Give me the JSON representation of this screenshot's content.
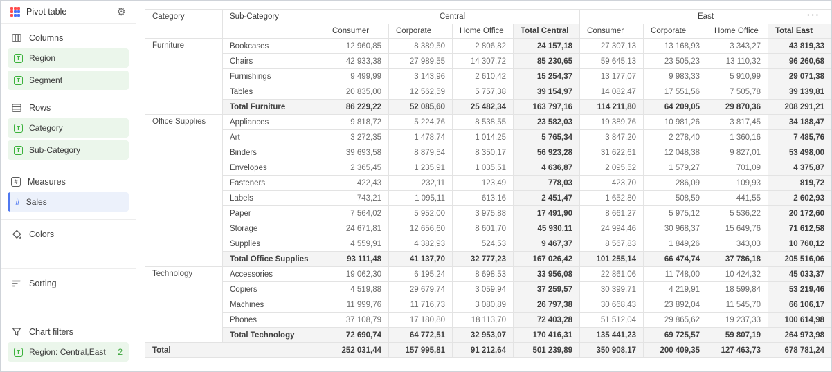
{
  "colors": {
    "accent_green": "#3bb23b",
    "accent_blue": "#4f78f0",
    "chip_green_bg": "#ebf6eb",
    "chip_blue_bg": "#ecf1fb",
    "total_bg": "#f4f4f4",
    "grid_line": "#e3e3e3",
    "icon_red": "#ff4d4d",
    "icon_blue": "#4a73f8"
  },
  "sidebar": {
    "title": "Pivot table",
    "sections": [
      {
        "label": "Columns",
        "icon": "columns-icon",
        "items": [
          {
            "label": "Region",
            "type": "dimension"
          },
          {
            "label": "Segment",
            "type": "dimension"
          }
        ]
      },
      {
        "label": "Rows",
        "icon": "rows-icon",
        "items": [
          {
            "label": "Category",
            "type": "dimension"
          },
          {
            "label": "Sub-Category",
            "type": "dimension"
          }
        ]
      },
      {
        "label": "Measures",
        "icon": "measures-icon",
        "items": [
          {
            "label": "Sales",
            "type": "measure"
          }
        ]
      },
      {
        "label": "Colors",
        "icon": "colors-icon",
        "items": []
      },
      {
        "label": "Sorting",
        "icon": "sorting-icon",
        "items": []
      },
      {
        "label": "Chart filters",
        "icon": "filter-icon",
        "items": [
          {
            "label": "Region: Central,East",
            "type": "dimension",
            "badge": "2"
          }
        ]
      }
    ]
  },
  "table": {
    "menu_button": "···",
    "row_headers": [
      "Category",
      "Sub-Category"
    ],
    "column_groups": [
      {
        "label": "Central",
        "columns": [
          "Consumer",
          "Corporate",
          "Home Office",
          "Total Central"
        ]
      },
      {
        "label": "East",
        "columns": [
          "Consumer",
          "Corporate",
          "Home Office",
          "Total East"
        ]
      }
    ],
    "groups": [
      {
        "category": "Furniture",
        "rows": [
          {
            "label": "Bookcases",
            "values": [
              "12 960,85",
              "8 389,50",
              "2 806,82",
              "24 157,18",
              "27 307,13",
              "13 168,93",
              "3 343,27",
              "43 819,33"
            ]
          },
          {
            "label": "Chairs",
            "values": [
              "42 933,38",
              "27 989,55",
              "14 307,72",
              "85 230,65",
              "59 645,13",
              "23 505,23",
              "13 110,32",
              "96 260,68"
            ]
          },
          {
            "label": "Furnishings",
            "values": [
              "9 499,99",
              "3 143,96",
              "2 610,42",
              "15 254,37",
              "13 177,07",
              "9 983,33",
              "5 910,99",
              "29 071,38"
            ]
          },
          {
            "label": "Tables",
            "values": [
              "20 835,00",
              "12 562,59",
              "5 757,38",
              "39 154,97",
              "14 082,47",
              "17 551,56",
              "7 505,78",
              "39 139,81"
            ]
          }
        ],
        "total": {
          "label": "Total Furniture",
          "values": [
            "86 229,22",
            "52 085,60",
            "25 482,34",
            "163 797,16",
            "114 211,80",
            "64 209,05",
            "29 870,36",
            "208 291,21"
          ]
        }
      },
      {
        "category": "Office Supplies",
        "rows": [
          {
            "label": "Appliances",
            "values": [
              "9 818,72",
              "5 224,76",
              "8 538,55",
              "23 582,03",
              "19 389,76",
              "10 981,26",
              "3 817,45",
              "34 188,47"
            ]
          },
          {
            "label": "Art",
            "values": [
              "3 272,35",
              "1 478,74",
              "1 014,25",
              "5 765,34",
              "3 847,20",
              "2 278,40",
              "1 360,16",
              "7 485,76"
            ]
          },
          {
            "label": "Binders",
            "values": [
              "39 693,58",
              "8 879,54",
              "8 350,17",
              "56 923,28",
              "31 622,61",
              "12 048,38",
              "9 827,01",
              "53 498,00"
            ]
          },
          {
            "label": "Envelopes",
            "values": [
              "2 365,45",
              "1 235,91",
              "1 035,51",
              "4 636,87",
              "2 095,52",
              "1 579,27",
              "701,09",
              "4 375,87"
            ]
          },
          {
            "label": "Fasteners",
            "values": [
              "422,43",
              "232,11",
              "123,49",
              "778,03",
              "423,70",
              "286,09",
              "109,93",
              "819,72"
            ]
          },
          {
            "label": "Labels",
            "values": [
              "743,21",
              "1 095,11",
              "613,16",
              "2 451,47",
              "1 652,80",
              "508,59",
              "441,55",
              "2 602,93"
            ]
          },
          {
            "label": "Paper",
            "values": [
              "7 564,02",
              "5 952,00",
              "3 975,88",
              "17 491,90",
              "8 661,27",
              "5 975,12",
              "5 536,22",
              "20 172,60"
            ]
          },
          {
            "label": "Storage",
            "values": [
              "24 671,81",
              "12 656,60",
              "8 601,70",
              "45 930,11",
              "24 994,46",
              "30 968,37",
              "15 649,76",
              "71 612,58"
            ]
          },
          {
            "label": "Supplies",
            "values": [
              "4 559,91",
              "4 382,93",
              "524,53",
              "9 467,37",
              "8 567,83",
              "1 849,26",
              "343,03",
              "10 760,12"
            ]
          }
        ],
        "total": {
          "label": "Total Office Supplies",
          "values": [
            "93 111,48",
            "41 137,70",
            "32 777,23",
            "167 026,42",
            "101 255,14",
            "66 474,74",
            "37 786,18",
            "205 516,06"
          ]
        }
      },
      {
        "category": "Technology",
        "rows": [
          {
            "label": "Accessories",
            "values": [
              "19 062,30",
              "6 195,24",
              "8 698,53",
              "33 956,08",
              "22 861,06",
              "11 748,00",
              "10 424,32",
              "45 033,37"
            ]
          },
          {
            "label": "Copiers",
            "values": [
              "4 519,88",
              "29 679,74",
              "3 059,94",
              "37 259,57",
              "30 399,71",
              "4 219,91",
              "18 599,84",
              "53 219,46"
            ]
          },
          {
            "label": "Machines",
            "values": [
              "11 999,76",
              "11 716,73",
              "3 080,89",
              "26 797,38",
              "30 668,43",
              "23 892,04",
              "11 545,70",
              "66 106,17"
            ]
          },
          {
            "label": "Phones",
            "values": [
              "37 108,79",
              "17 180,80",
              "18 113,70",
              "72 403,28",
              "51 512,04",
              "29 865,62",
              "19 237,33",
              "100 614,98"
            ]
          }
        ],
        "total": {
          "label": "Total Technology",
          "values": [
            "72 690,74",
            "64 772,51",
            "32 953,07",
            "170 416,31",
            "135 441,23",
            "69 725,57",
            "59 807,19",
            "264 973,98"
          ]
        }
      }
    ],
    "grand_total": {
      "label": "Total",
      "values": [
        "252 031,44",
        "157 995,81",
        "91 212,64",
        "501 239,89",
        "350 908,17",
        "200 409,35",
        "127 463,73",
        "678 781,24"
      ]
    }
  }
}
